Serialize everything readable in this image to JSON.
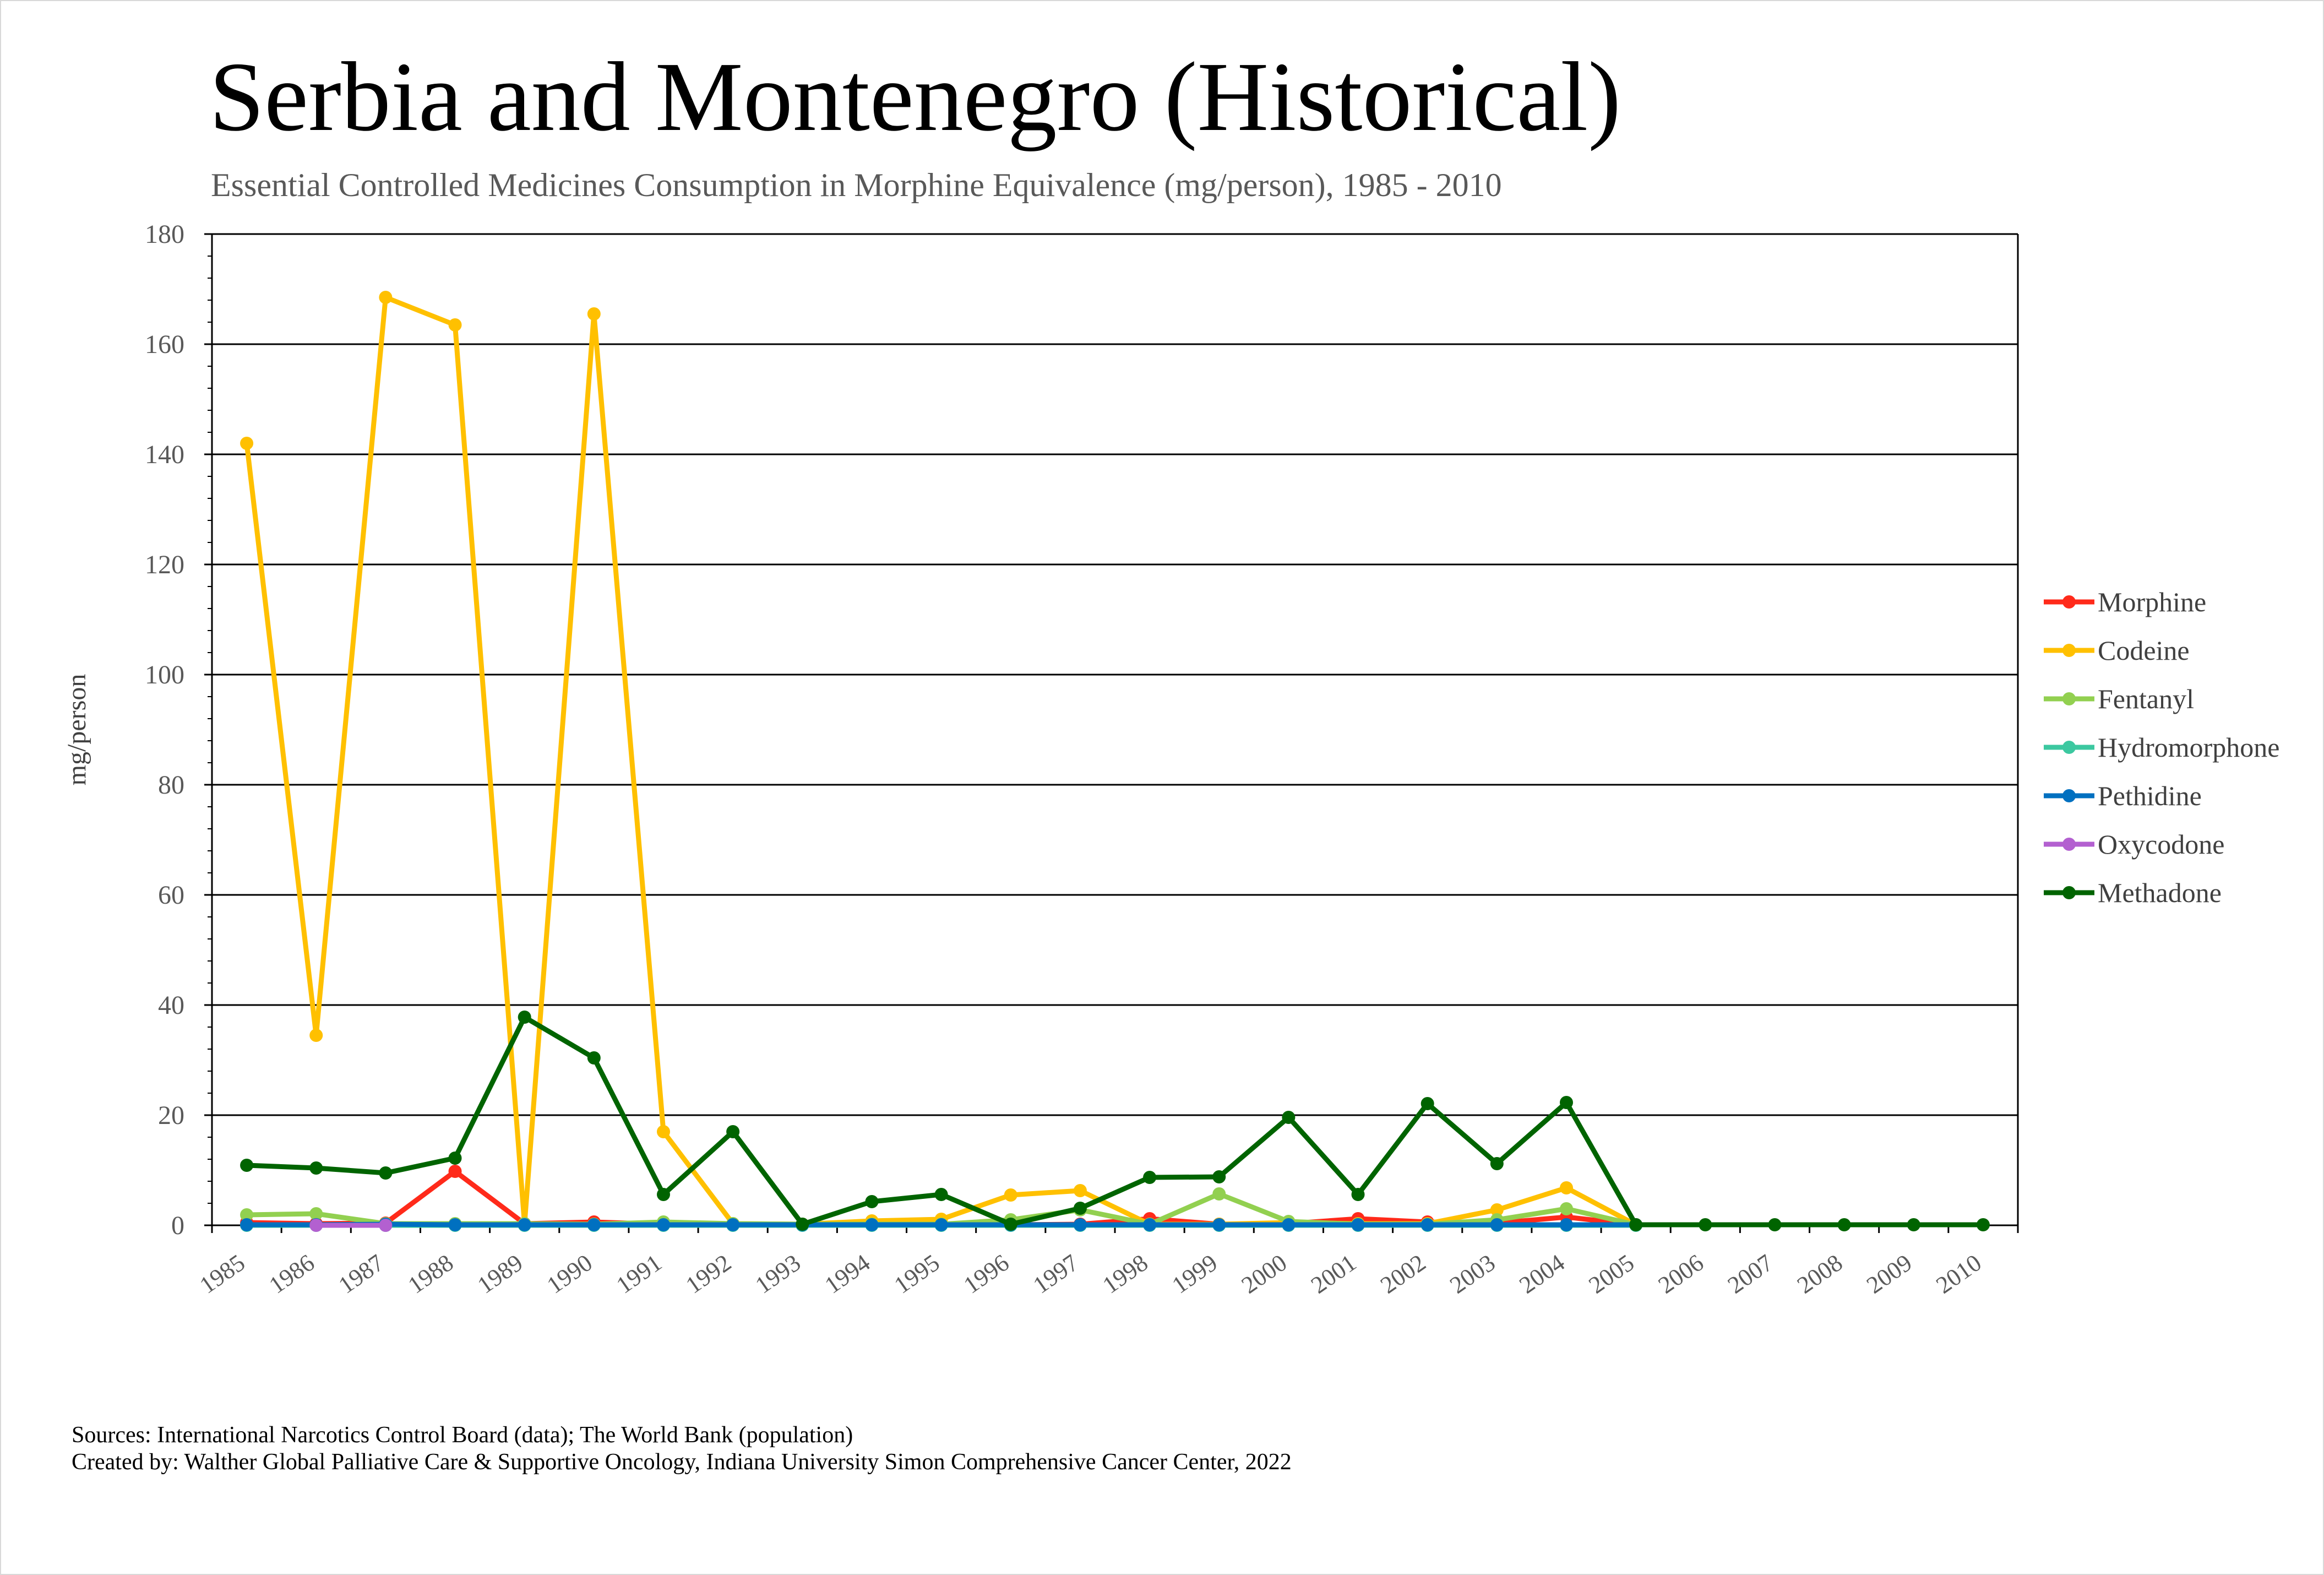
{
  "title": "Serbia and Montenegro (Historical)",
  "subtitle": "Essential Controlled Medicines Consumption in Morphine Equivalence (mg/person), 1985 - 2010",
  "footer": {
    "sources": "Sources: International Narcotics Control Board (data); The World Bank (population)",
    "created_by": "Created by: Walther Global Palliative Care & Supportive Oncology, Indiana University Simon Comprehensive Cancer Center, 2022"
  },
  "chart_data": {
    "type": "line",
    "title": "Serbia and Montenegro (Historical)",
    "subtitle": "Essential Controlled Medicines Consumption in Morphine Equivalence (mg/person), 1985 - 2010",
    "xlabel": "",
    "ylabel": "mg/person",
    "ylim": [
      0,
      180
    ],
    "yticks": [
      0,
      20,
      40,
      60,
      80,
      100,
      120,
      140,
      160,
      180
    ],
    "grid": true,
    "legend_position": "right",
    "categories": [
      "1985",
      "1986",
      "1987",
      "1988",
      "1989",
      "1990",
      "1991",
      "1992",
      "1993",
      "1994",
      "1995",
      "1996",
      "1997",
      "1998",
      "1999",
      "2000",
      "2001",
      "2002",
      "2003",
      "2004",
      "2005",
      "2006",
      "2007",
      "2008",
      "2009",
      "2010"
    ],
    "series": [
      {
        "name": "Morphine",
        "color": "#ff2a1a",
        "values": [
          0.5,
          0.3,
          0.4,
          9.8,
          0.3,
          0.6,
          0.2,
          0.2,
          0.1,
          0.1,
          0.1,
          0.1,
          0.2,
          1.2,
          0.2,
          0.3,
          1.2,
          0.6,
          0.4,
          1.5,
          0.1,
          null,
          null,
          null,
          null,
          null
        ]
      },
      {
        "name": "Codeine",
        "color": "#ffc000",
        "values": [
          142,
          34.5,
          168.5,
          163.5,
          0.2,
          165.5,
          17,
          0.3,
          0.2,
          0.8,
          1.1,
          5.5,
          6.3,
          0.2,
          0.2,
          0.5,
          0.3,
          0.3,
          2.8,
          6.8,
          0.1,
          null,
          null,
          null,
          null,
          null
        ]
      },
      {
        "name": "Fentanyl",
        "color": "#92d050",
        "values": [
          1.9,
          2.1,
          0.3,
          0.3,
          0.3,
          0.2,
          0.6,
          0.3,
          0.2,
          0.2,
          0.2,
          1.0,
          2.8,
          0.2,
          5.7,
          0.7,
          0.2,
          0.2,
          1.0,
          3.0,
          0.1,
          null,
          null,
          null,
          null,
          null
        ]
      },
      {
        "name": "Hydromorphone",
        "color": "#3cc8a0",
        "values": [
          0,
          0,
          0,
          0,
          0,
          0,
          0,
          0,
          0,
          0,
          0,
          0,
          0,
          0,
          0,
          0,
          0,
          0,
          0,
          0,
          0,
          null,
          null,
          null,
          null,
          null
        ]
      },
      {
        "name": "Pethidine",
        "color": "#0070c0",
        "values": [
          0.1,
          0.1,
          0.2,
          0.1,
          0.1,
          0.1,
          0.1,
          0.1,
          0.1,
          0.1,
          0.1,
          0.1,
          0.1,
          0.1,
          0.1,
          0.1,
          0.1,
          0.1,
          0.1,
          0.1,
          0.1,
          null,
          null,
          null,
          null,
          null
        ]
      },
      {
        "name": "Oxycodone",
        "color": "#b360d0",
        "values": [
          null,
          0,
          0,
          null,
          null,
          null,
          null,
          null,
          null,
          null,
          null,
          null,
          null,
          null,
          null,
          null,
          null,
          null,
          null,
          null,
          null,
          null,
          null,
          null,
          null,
          null
        ]
      },
      {
        "name": "Methadone",
        "color": "#006400",
        "values": [
          10.9,
          10.4,
          9.5,
          12.2,
          37.8,
          30.4,
          5.6,
          17.0,
          0.2,
          4.3,
          5.6,
          0.2,
          3.1,
          8.7,
          8.8,
          19.6,
          5.6,
          22.1,
          11.2,
          22.3,
          0.1,
          0.1,
          0.1,
          0.1,
          0.1,
          0.1
        ]
      }
    ]
  }
}
